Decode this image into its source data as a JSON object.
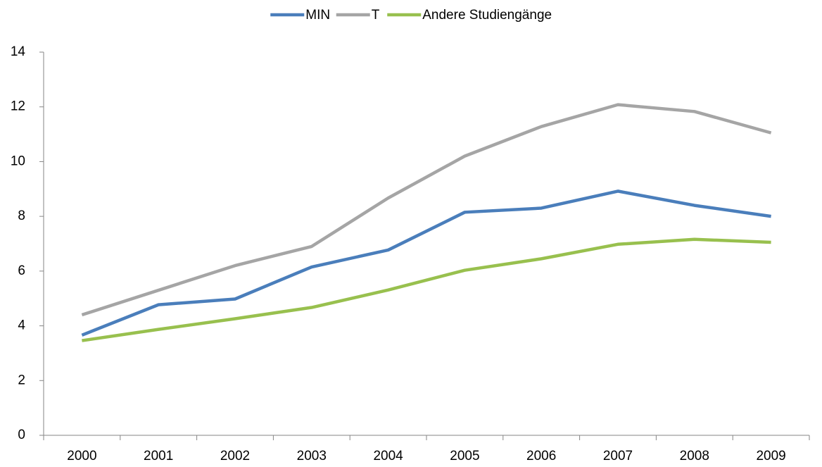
{
  "chart_data": {
    "type": "line",
    "categories": [
      "2000",
      "2001",
      "2002",
      "2003",
      "2004",
      "2005",
      "2006",
      "2007",
      "2008",
      "2009"
    ],
    "series": [
      {
        "name": "MIN",
        "color": "#4a7ebb",
        "values": [
          3.66,
          4.77,
          4.98,
          6.15,
          6.77,
          8.15,
          8.3,
          8.92,
          8.4,
          8.0
        ]
      },
      {
        "name": "T",
        "color": "#a5a5a5",
        "values": [
          4.4,
          5.3,
          6.2,
          6.9,
          8.67,
          10.2,
          11.28,
          12.08,
          11.83,
          11.05
        ]
      },
      {
        "name": "Andere Studiengänge",
        "color": "#98c04e",
        "values": [
          3.46,
          3.87,
          4.26,
          4.67,
          5.31,
          6.03,
          6.45,
          6.98,
          7.16,
          7.05
        ]
      }
    ],
    "ylim": [
      0,
      14
    ],
    "yticks": [
      0,
      2,
      4,
      6,
      8,
      10,
      12,
      14
    ],
    "grid": false,
    "legend": "top"
  }
}
